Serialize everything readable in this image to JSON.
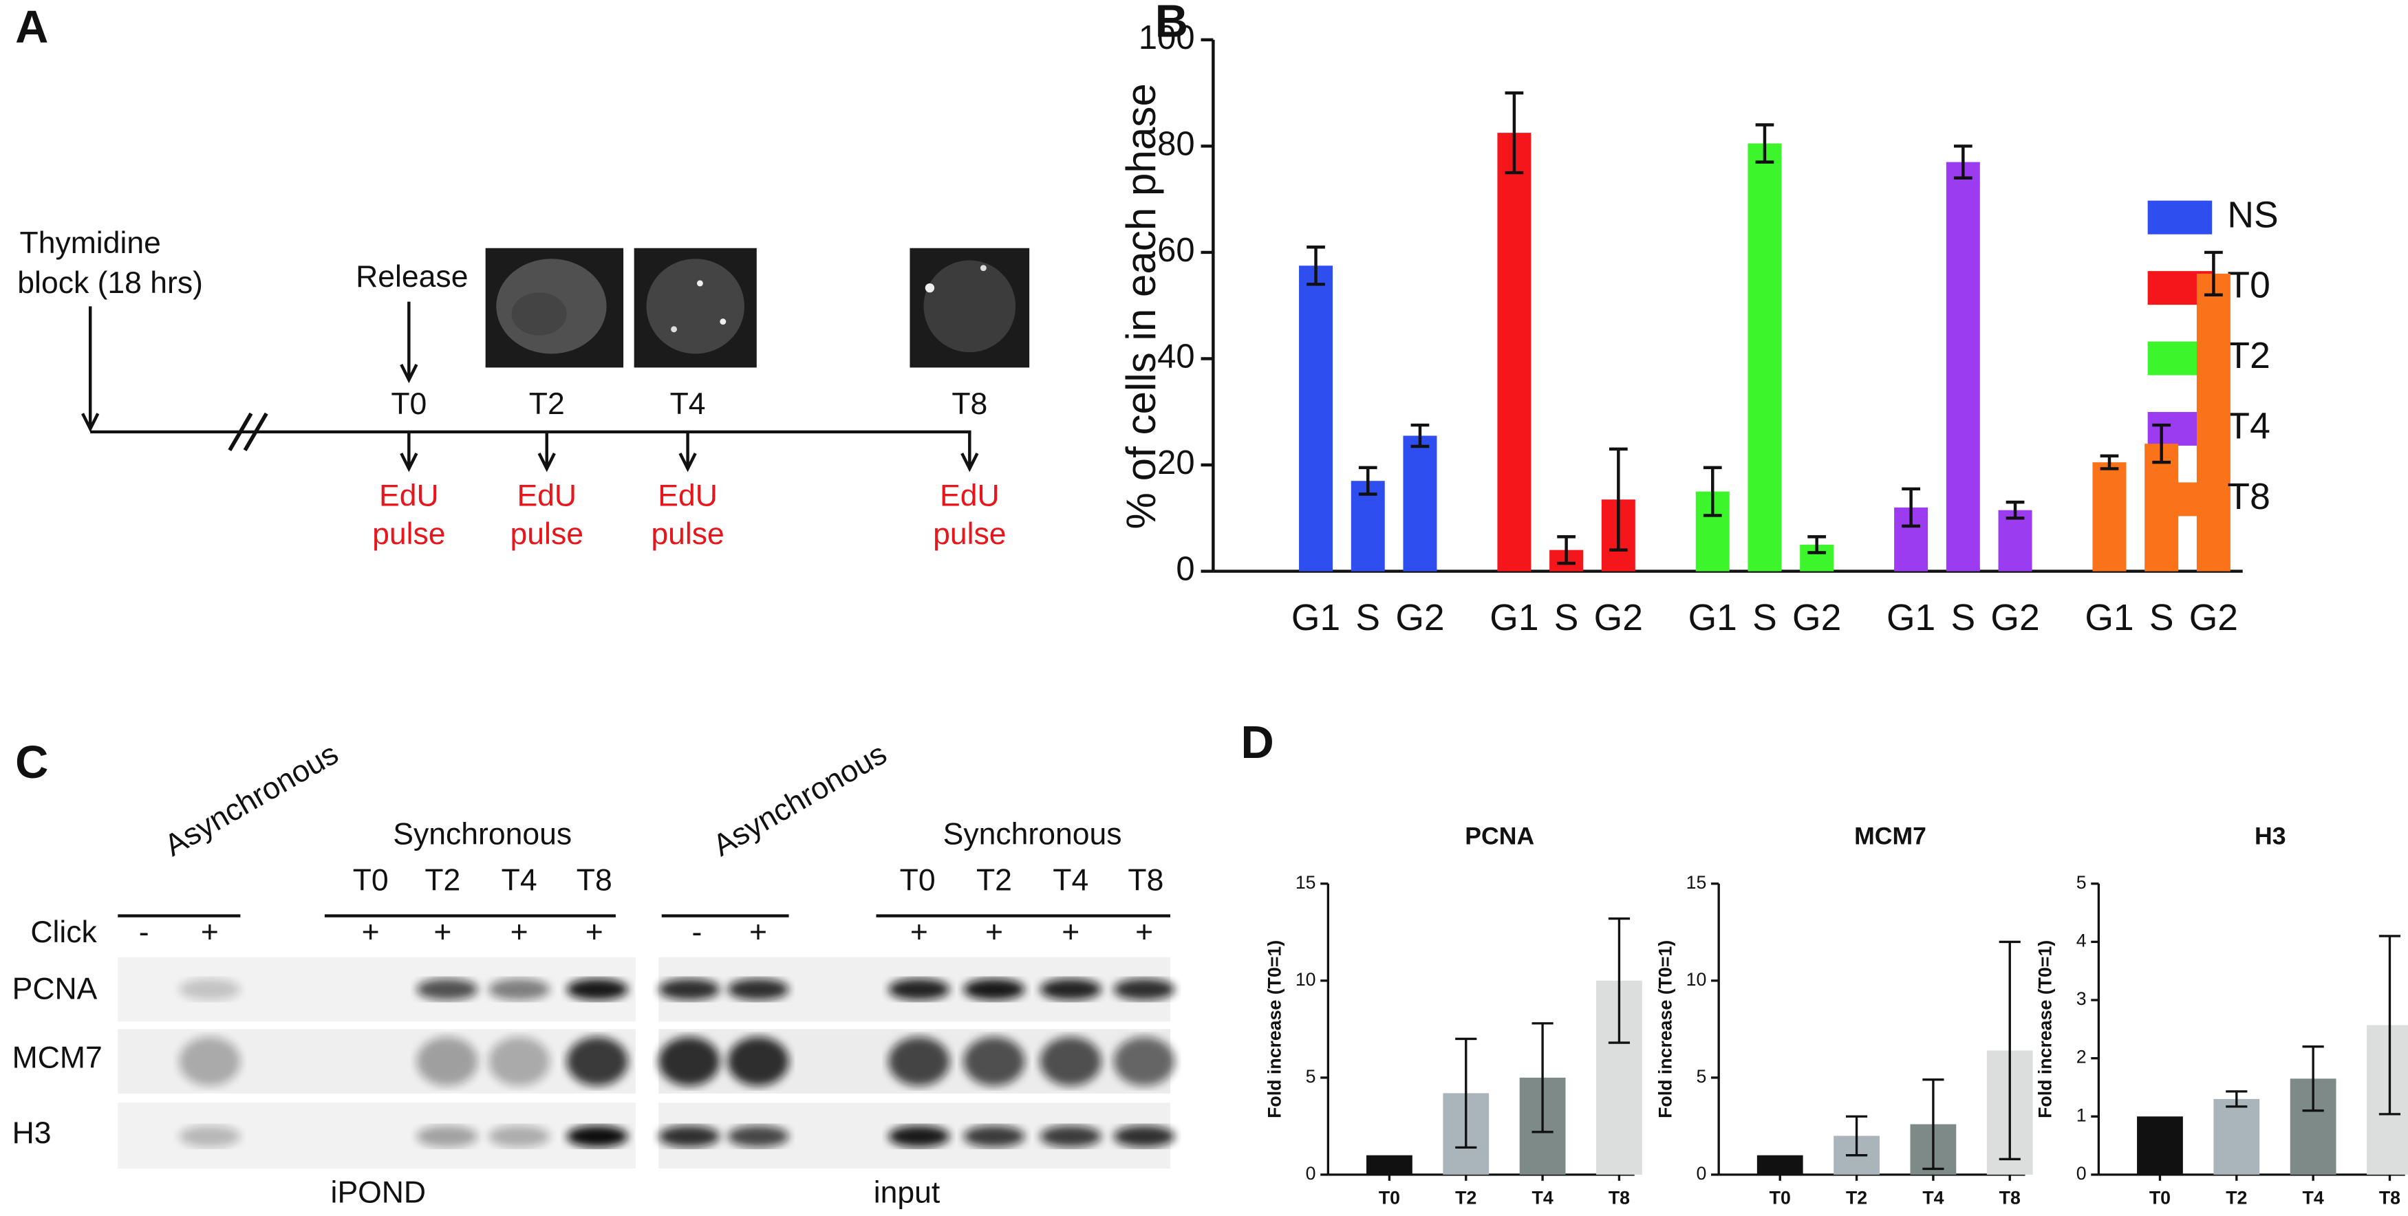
{
  "panel_labels": [
    "A",
    "B",
    "C",
    "D"
  ],
  "timeline": {
    "block": [
      "Thymidine",
      "block (18 hrs)"
    ],
    "release": "Release",
    "timepoints": [
      "T0",
      "T2",
      "T4",
      "T8"
    ],
    "pulse": [
      "EdU",
      "pulse"
    ]
  },
  "blot": {
    "asynchronous": "Asynchronous",
    "synchronous": "Synchronous",
    "timepoints": [
      "T0",
      "T2",
      "T4",
      "T8"
    ],
    "click_label": "Click",
    "ipond_click": [
      "-",
      "+",
      "+",
      "+",
      "+",
      "+"
    ],
    "input_click": [
      "-",
      "+",
      "+",
      "+",
      "+",
      "+"
    ],
    "proteins": [
      "PCNA",
      "MCM7",
      "H3"
    ],
    "captions": [
      "iPOND",
      "input"
    ]
  },
  "chart_data": [
    {
      "type": "grouped-bar",
      "y_label": "% of cells in each phase",
      "categories": [
        "G1",
        "S",
        "G2"
      ],
      "ylim": [
        0,
        100
      ],
      "yticks": [
        0,
        20,
        40,
        60,
        80,
        100
      ],
      "legend": "right",
      "series": [
        {
          "name": "NS",
          "color": "#2f4ef0",
          "values": [
            57.5,
            17,
            25.5
          ],
          "errors": [
            3.5,
            2.5,
            2
          ]
        },
        {
          "name": "T0",
          "color": "#f5161b",
          "values": [
            82.5,
            4,
            13.5
          ],
          "errors": [
            7.5,
            2.5,
            9.5
          ]
        },
        {
          "name": "T2",
          "color": "#3cf52a",
          "values": [
            15,
            80.5,
            5
          ],
          "errors": [
            4.5,
            3.5,
            1.5
          ]
        },
        {
          "name": "T4",
          "color": "#9b3cf0",
          "values": [
            12,
            77,
            11.5
          ],
          "errors": [
            3.5,
            3,
            1.5
          ]
        },
        {
          "name": "T8",
          "color": "#fb7318",
          "values": [
            20.5,
            24,
            56
          ],
          "errors": [
            1.2,
            3.5,
            4
          ]
        }
      ]
    },
    {
      "type": "bar",
      "title": "PCNA",
      "y_label": "Fold increase (T0=1)",
      "categories": [
        "T0",
        "T2",
        "T4",
        "T8"
      ],
      "values": [
        1,
        4.2,
        5,
        10
      ],
      "errors": [
        0,
        2.8,
        2.8,
        3.2
      ],
      "colors": [
        "#111111",
        "#a9b4bb",
        "#7d8a87",
        "#dcdedd"
      ],
      "ylim": [
        0,
        15
      ],
      "yticks": [
        0,
        5,
        10,
        15
      ]
    },
    {
      "type": "bar",
      "title": "MCM7",
      "y_label": "Fold increase (T0=1)",
      "categories": [
        "T0",
        "T2",
        "T4",
        "T8"
      ],
      "values": [
        1,
        2,
        2.6,
        6.4
      ],
      "errors": [
        0,
        1,
        2.3,
        5.6
      ],
      "colors": [
        "#111111",
        "#a9b4bb",
        "#7d8a87",
        "#dcdedd"
      ],
      "ylim": [
        0,
        15
      ],
      "yticks": [
        0,
        5,
        10,
        15
      ]
    },
    {
      "type": "bar",
      "title": "H3",
      "y_label": "Fold increase (T0=1)",
      "categories": [
        "T0",
        "T2",
        "T4",
        "T8"
      ],
      "values": [
        1,
        1.3,
        1.65,
        2.57
      ],
      "errors": [
        0,
        0.13,
        0.55,
        1.53
      ],
      "colors": [
        "#111111",
        "#a9b4bb",
        "#7d8a87",
        "#dcdedd"
      ],
      "ylim": [
        0,
        5
      ],
      "yticks": [
        0,
        1,
        2,
        3,
        4,
        5
      ]
    }
  ]
}
